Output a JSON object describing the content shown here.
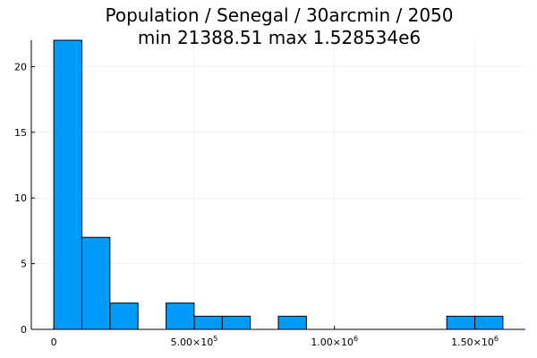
{
  "chart_data": {
    "type": "bar",
    "title": "Population / Senegal / 30arcmin / 2050",
    "subtitle": "min 21388.51  max 1.528534e6",
    "xlabel": "",
    "ylabel": "",
    "bin_width": 100000,
    "bins": [
      {
        "start": 0,
        "end": 100000,
        "count": 22
      },
      {
        "start": 100000,
        "end": 200000,
        "count": 7
      },
      {
        "start": 200000,
        "end": 300000,
        "count": 2
      },
      {
        "start": 300000,
        "end": 400000,
        "count": 0
      },
      {
        "start": 400000,
        "end": 500000,
        "count": 2
      },
      {
        "start": 500000,
        "end": 600000,
        "count": 1
      },
      {
        "start": 600000,
        "end": 700000,
        "count": 1
      },
      {
        "start": 700000,
        "end": 800000,
        "count": 0
      },
      {
        "start": 800000,
        "end": 900000,
        "count": 1
      },
      {
        "start": 900000,
        "end": 1000000,
        "count": 0
      },
      {
        "start": 1000000,
        "end": 1100000,
        "count": 0
      },
      {
        "start": 1100000,
        "end": 1200000,
        "count": 0
      },
      {
        "start": 1200000,
        "end": 1300000,
        "count": 0
      },
      {
        "start": 1300000,
        "end": 1400000,
        "count": 0
      },
      {
        "start": 1400000,
        "end": 1500000,
        "count": 1
      },
      {
        "start": 1500000,
        "end": 1600000,
        "count": 1
      }
    ],
    "xlim": [
      -80000,
      1680000
    ],
    "ylim": [
      0,
      22
    ],
    "xticks": [
      {
        "value": 0,
        "mantissa": "0",
        "exponent": ""
      },
      {
        "value": 500000,
        "mantissa": "5.00×10",
        "exponent": "5"
      },
      {
        "value": 1000000,
        "mantissa": "1.00×10",
        "exponent": "6"
      },
      {
        "value": 1500000,
        "mantissa": "1.50×10",
        "exponent": "6"
      }
    ],
    "yticks": [
      0,
      5,
      10,
      15,
      20
    ],
    "grid": true,
    "legend": "none",
    "bar_color": "#009af9"
  }
}
